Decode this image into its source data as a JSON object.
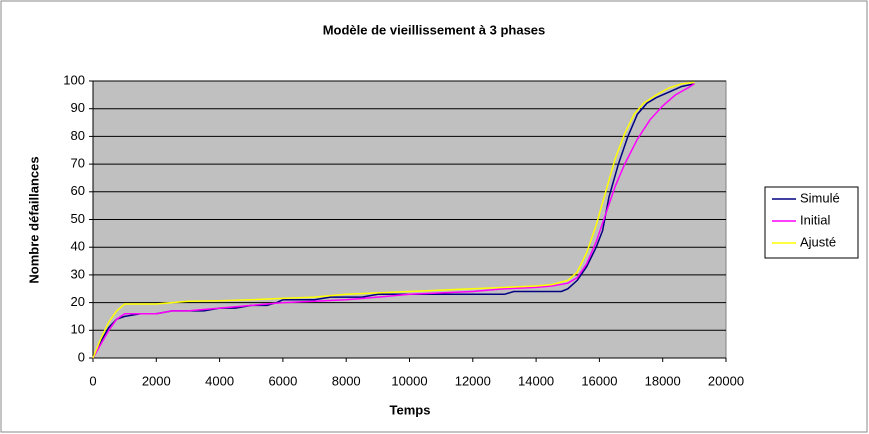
{
  "chart_data": {
    "type": "line",
    "title": "Modèle de vieillissement à 3 phases",
    "xlabel": "Temps",
    "ylabel": "Nombre défaillances",
    "xlim": [
      0,
      20000
    ],
    "xticks": [
      0,
      2000,
      4000,
      6000,
      8000,
      10000,
      12000,
      14000,
      16000,
      18000,
      20000
    ],
    "ylim": [
      0,
      100
    ],
    "yticks": [
      0,
      10,
      20,
      30,
      40,
      50,
      60,
      70,
      80,
      90,
      100
    ],
    "grid": true,
    "legend": "right",
    "series": [
      {
        "name": "Simulé",
        "color": "#000080",
        "x": [
          0,
          250,
          500,
          750,
          1000,
          1500,
          2000,
          2500,
          3000,
          3500,
          4000,
          4500,
          5000,
          5500,
          5800,
          6000,
          6500,
          7000,
          7500,
          8000,
          8500,
          9000,
          9500,
          10000,
          11000,
          12000,
          13000,
          13300,
          14000,
          14500,
          14800,
          15000,
          15300,
          15600,
          15900,
          16100,
          16300,
          16600,
          16900,
          17200,
          17500,
          17800,
          18200,
          18600,
          19000
        ],
        "values": [
          0,
          6,
          11,
          14,
          15,
          16,
          16,
          17,
          17,
          17,
          18,
          18,
          19,
          19,
          20,
          21,
          21,
          21,
          22,
          22,
          22,
          23,
          23,
          23,
          23,
          23,
          23,
          24,
          24,
          24,
          24,
          25,
          28,
          33,
          40,
          46,
          58,
          70,
          80,
          88,
          92,
          94,
          96,
          98,
          99
        ]
      },
      {
        "name": "Initial",
        "color": "#ff00ff",
        "x": [
          0,
          250,
          500,
          750,
          1000,
          1500,
          2000,
          2500,
          3000,
          4000,
          5000,
          6000,
          7000,
          8000,
          9000,
          10000,
          11000,
          12000,
          13000,
          14000,
          14500,
          15000,
          15300,
          15600,
          15900,
          16200,
          16500,
          16800,
          17200,
          17600,
          18000,
          18400,
          18800,
          19000
        ],
        "values": [
          0,
          5,
          10,
          14,
          16,
          16,
          16,
          17,
          17,
          18,
          19,
          20,
          20.5,
          21,
          22,
          23,
          23.5,
          24,
          25,
          25.5,
          26,
          27,
          29,
          34,
          42,
          52,
          62,
          70,
          79,
          86,
          91,
          95,
          97.5,
          99
        ]
      },
      {
        "name": "Ajusté",
        "color": "#ffff00",
        "x": [
          0,
          250,
          500,
          750,
          1000,
          1500,
          2000,
          2500,
          3000,
          4000,
          5000,
          6000,
          7000,
          8000,
          9000,
          10000,
          11000,
          12000,
          13000,
          14000,
          14500,
          15000,
          15300,
          15600,
          15900,
          16200,
          16500,
          16800,
          17100,
          17400,
          17800,
          18200,
          18600,
          19000
        ],
        "values": [
          0,
          7,
          13,
          17,
          19.5,
          19.5,
          19.5,
          20,
          20.5,
          20.7,
          21,
          21.5,
          22,
          23,
          23.5,
          24,
          24.5,
          25,
          25.5,
          26,
          26.5,
          28,
          31,
          38,
          48,
          60,
          72,
          81,
          88,
          92,
          95,
          97.5,
          99,
          99.5
        ]
      }
    ]
  }
}
